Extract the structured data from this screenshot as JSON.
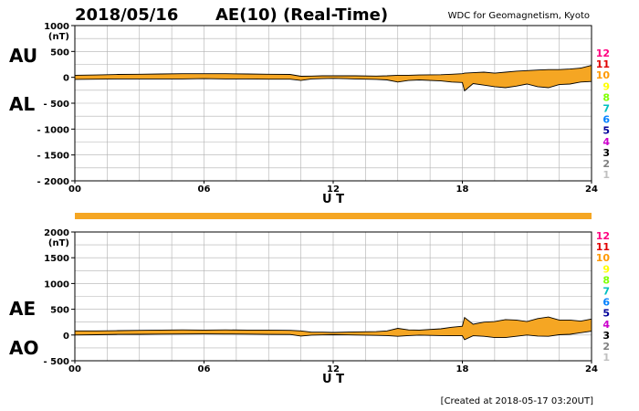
{
  "header": {
    "date": "2018/05/16",
    "title": "AE(10) (Real-Time)",
    "source": "WDC for Geomagnetism, Kyoto"
  },
  "footer": {
    "created": "[Created at 2018-05-17 03:20UT]"
  },
  "colors": {
    "fill": "#f5a623",
    "line": "#000000",
    "grid": "#b0b0b0",
    "availability_bar": "#f5a623"
  },
  "chart_data": [
    {
      "type": "area",
      "panel": "AU/AL",
      "series_labels": [
        "AU",
        "AL"
      ],
      "unit_label": "(nT)",
      "xlabel": "U T",
      "xlim": [
        0,
        24
      ],
      "x_ticks": [
        0,
        6,
        12,
        18,
        24
      ],
      "x_tick_labels": [
        "00",
        "06",
        "12",
        "18",
        "24"
      ],
      "ylim": [
        -2000,
        1000
      ],
      "y_ticks": [
        1000,
        500,
        0,
        -500,
        -1000,
        -1500,
        -2000
      ],
      "y_tick_labels": [
        "1000",
        "500",
        "0",
        "- 500",
        "- 1000",
        "- 1500",
        "- 2000"
      ],
      "x": [
        0,
        1,
        2,
        3,
        4,
        5,
        6,
        7,
        8,
        9,
        10,
        10.5,
        11,
        11.5,
        12,
        13,
        14,
        14.5,
        15,
        15.5,
        16,
        17,
        17.5,
        18,
        18.1,
        18.5,
        19,
        19.5,
        20,
        20.5,
        21,
        21.5,
        22,
        22.5,
        23,
        23.5,
        24
      ],
      "series": [
        {
          "name": "AU",
          "values": [
            40,
            45,
            55,
            60,
            65,
            70,
            70,
            70,
            65,
            60,
            55,
            20,
            25,
            30,
            30,
            30,
            25,
            30,
            40,
            40,
            45,
            50,
            60,
            70,
            80,
            90,
            100,
            80,
            100,
            120,
            130,
            140,
            150,
            150,
            160,
            180,
            230
          ]
        },
        {
          "name": "AL",
          "values": [
            -40,
            -35,
            -30,
            -30,
            -30,
            -30,
            -25,
            -30,
            -30,
            -35,
            -35,
            -60,
            -30,
            -25,
            -20,
            -30,
            -40,
            -50,
            -90,
            -60,
            -50,
            -70,
            -90,
            -100,
            -260,
            -120,
            -150,
            -180,
            -200,
            -170,
            -130,
            -180,
            -200,
            -140,
            -130,
            -90,
            -80
          ]
        }
      ],
      "legend_digits": [
        "12",
        "11",
        "10",
        "9",
        "8",
        "7",
        "6",
        "5",
        "4",
        "3",
        "2",
        "1"
      ],
      "legend_colors": [
        "#ff0080",
        "#e00000",
        "#ff9900",
        "#ffff00",
        "#80ff00",
        "#00c0c0",
        "#0080ff",
        "#000099",
        "#cc00cc",
        "#000000",
        "#808080",
        "#c0c0c0"
      ]
    },
    {
      "type": "area",
      "panel": "AE/AO",
      "series_labels": [
        "AE",
        "AO"
      ],
      "unit_label": "(nT)",
      "xlabel": "U T",
      "xlim": [
        0,
        24
      ],
      "x_ticks": [
        0,
        6,
        12,
        18,
        24
      ],
      "x_tick_labels": [
        "00",
        "06",
        "12",
        "18",
        "24"
      ],
      "ylim": [
        -500,
        2000
      ],
      "y_ticks": [
        2000,
        1500,
        1000,
        500,
        0,
        -500
      ],
      "y_tick_labels": [
        "2000",
        "1500",
        "1000",
        "500",
        "0",
        "- 500"
      ],
      "x": [
        0,
        1,
        2,
        3,
        4,
        5,
        6,
        7,
        8,
        9,
        10,
        10.5,
        11,
        11.5,
        12,
        13,
        14,
        14.5,
        15,
        15.5,
        16,
        17,
        17.5,
        18,
        18.1,
        18.5,
        19,
        19.5,
        20,
        20.5,
        21,
        21.5,
        22,
        22.5,
        23,
        23.5,
        24
      ],
      "series": [
        {
          "name": "AE",
          "values": [
            80,
            80,
            85,
            90,
            95,
            100,
            95,
            100,
            95,
            95,
            90,
            80,
            55,
            55,
            50,
            60,
            65,
            80,
            130,
            100,
            95,
            120,
            150,
            170,
            340,
            210,
            250,
            260,
            300,
            290,
            260,
            320,
            350,
            290,
            290,
            270,
            310
          ]
        },
        {
          "name": "AO",
          "values": [
            0,
            5,
            12,
            15,
            17,
            20,
            22,
            20,
            17,
            12,
            10,
            -20,
            -2,
            2,
            5,
            0,
            -7,
            -10,
            -25,
            -10,
            -2,
            -10,
            -15,
            -15,
            -90,
            -15,
            -25,
            -50,
            -50,
            -25,
            0,
            -20,
            -25,
            5,
            15,
            45,
            75
          ]
        }
      ],
      "legend_digits": [
        "12",
        "11",
        "10",
        "9",
        "8",
        "7",
        "6",
        "5",
        "4",
        "3",
        "2",
        "1"
      ],
      "legend_colors": [
        "#ff0080",
        "#e00000",
        "#ff9900",
        "#ffff00",
        "#80ff00",
        "#00c0c0",
        "#0080ff",
        "#000099",
        "#cc00cc",
        "#000000",
        "#808080",
        "#c0c0c0"
      ]
    }
  ]
}
